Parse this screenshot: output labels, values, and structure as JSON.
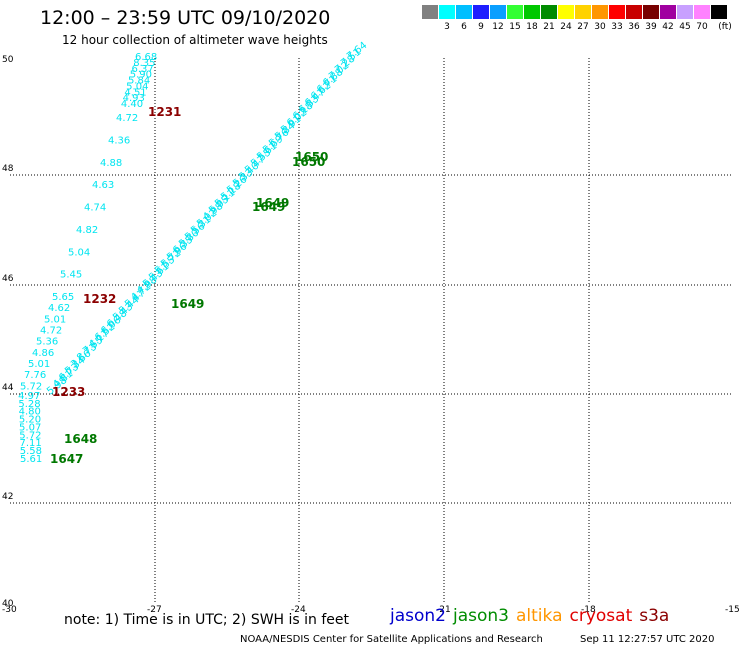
{
  "header": {
    "title": "12:00 – 23:59 UTC 09/10/2020",
    "subtitle": "12 hour collection of altimeter wave heights"
  },
  "color_scale": {
    "unit": "(ft)",
    "bins": [
      {
        "label": "",
        "color": "#808080"
      },
      {
        "label": "3",
        "color": "#00ffff"
      },
      {
        "label": "6",
        "color": "#00bfff"
      },
      {
        "label": "9",
        "color": "#1e1eff"
      },
      {
        "label": "12",
        "color": "#0a9fff"
      },
      {
        "label": "15",
        "color": "#33ff33"
      },
      {
        "label": "18",
        "color": "#00c800"
      },
      {
        "label": "21",
        "color": "#008c00"
      },
      {
        "label": "24",
        "color": "#ffff00"
      },
      {
        "label": "27",
        "color": "#ffd200"
      },
      {
        "label": "30",
        "color": "#ff9600"
      },
      {
        "label": "33",
        "color": "#ff0000"
      },
      {
        "label": "36",
        "color": "#c80000"
      },
      {
        "label": "39",
        "color": "#780000"
      },
      {
        "label": "42",
        "color": "#a000a0"
      },
      {
        "label": "45",
        "color": "#c8a0ff"
      },
      {
        "label": "70",
        "color": "#ff82ff"
      },
      {
        "label": "",
        "color": "#000000"
      }
    ]
  },
  "map": {
    "lon_ticks": [
      "-30",
      "-27",
      "-24",
      "-21",
      "-18",
      "-15"
    ],
    "lat_ticks": [
      "50",
      "48",
      "46",
      "44",
      "42",
      "40"
    ],
    "track_color": "#00e5f0",
    "track_a_values": [
      "6.68",
      "8.35",
      "6.37",
      "5.90",
      "5.84",
      "5.04",
      "4.51",
      "4.93",
      "4.40",
      "4.72",
      "4.36",
      "4.88",
      "4.63",
      "4.74",
      "4.82",
      "5.04",
      "5.45",
      "5.65",
      "4.62",
      "5.01",
      "4.72",
      "5.36",
      "4.86",
      "5.01",
      "7.76",
      "5.72",
      "4.97",
      "5.28",
      "4.80",
      "5.20",
      "5.07",
      "5.72",
      "7.11",
      "5.58",
      "5.61"
    ],
    "track_b_values": [
      "7.64",
      "7.51",
      "7.28",
      "7.02",
      "6.88",
      "6.71",
      "6.62",
      "6.47",
      "6.33",
      "6.18",
      "6.02",
      "5.91",
      "5.84",
      "5.76",
      "5.69",
      "5.61",
      "5.55",
      "5.47",
      "5.40",
      "5.33",
      "5.26",
      "5.18",
      "5.11",
      "5.05",
      "4.98",
      "5.02",
      "5.31",
      "5.56",
      "5.80",
      "6.35",
      "5.96",
      "5.72",
      "5.55",
      "5.61",
      "5.43",
      "4.98",
      "4.72",
      "5.47",
      "5.44",
      "5.43",
      "6.48",
      "6.06",
      "6.52",
      "4.17",
      "7.55",
      "8.73",
      "3.66",
      "5.34",
      "6.73",
      "4.81",
      "5.98"
    ],
    "time_labels": [
      {
        "text": "1231",
        "color": "#8b0000"
      },
      {
        "text": "1232",
        "color": "#8b0000"
      },
      {
        "text": "1233",
        "color": "#8b0000"
      },
      {
        "text": "1650",
        "color": "#007800"
      },
      {
        "text": "1650",
        "color": "#007800"
      },
      {
        "text": "1649",
        "color": "#007800"
      },
      {
        "text": "1649",
        "color": "#007800"
      },
      {
        "text": "1649",
        "color": "#007800"
      },
      {
        "text": "1648",
        "color": "#007800"
      },
      {
        "text": "1647",
        "color": "#007800"
      }
    ]
  },
  "footer": {
    "note": "note: 1) Time is in UTC; 2) SWH is in feet",
    "satellites": [
      {
        "name": "jason2",
        "color": "#0000cc"
      },
      {
        "name": "jason3",
        "color": "#008c00"
      },
      {
        "name": "altika",
        "color": "#ff9600"
      },
      {
        "name": "cryosat",
        "color": "#e00000"
      },
      {
        "name": "s3a",
        "color": "#8b0000"
      }
    ],
    "credit": "NOAA/NESDIS Center for Satellite Applications and Research",
    "timestamp": "Sep 11 12:27:57 UTC 2020"
  }
}
